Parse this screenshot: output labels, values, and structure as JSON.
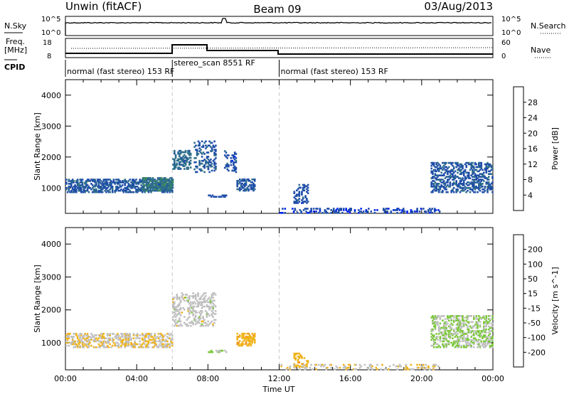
{
  "header": {
    "station": "Unwin (fitACF)",
    "beam": "Beam 09",
    "date": "03/Aug/2013"
  },
  "top_panel_labels": {
    "nsky": "N.Sky",
    "nsky_ticks": [
      "10^5",
      "10^0"
    ],
    "nsearch": "N.Search",
    "nsearch_ticks": [
      "10^5",
      "10^0"
    ],
    "freq": "Freq.",
    "freq_unit": "[MHz]",
    "freq_ticks": [
      "18",
      "8"
    ],
    "nave": "Nave",
    "nave_ticks": [
      "60",
      "0"
    ],
    "cpid": "CPID"
  },
  "cpid_segments": [
    {
      "label": "normal (fast stereo) 153 RF",
      "start": 0,
      "end": 6
    },
    {
      "label": "stereo_scan 8551 RF",
      "start": 6,
      "end": 12
    },
    {
      "label": "normal (fast stereo) 153 RF",
      "start": 12,
      "end": 24
    }
  ],
  "colors": {
    "power": [
      "#0022ee",
      "#1f4ea8",
      "#2f6f8a",
      "#3c8f5a",
      "#7cc83c",
      "#f0b41c",
      "#f08a1a",
      "#f05a12",
      "#e01010"
    ],
    "velocity": [
      "#e01010",
      "#f05a12",
      "#f08a1a",
      "#f0b41c",
      "#c0c0c0",
      "#7cc83c",
      "#3c8f5a",
      "#1f4ea8",
      "#2233cc"
    ],
    "grey": "#bbbbbb"
  },
  "chart_data": [
    {
      "type": "heatmap",
      "xlabel": "Time UT",
      "ylabel": "Slant Range [km]",
      "colorbar_label": "Power [dB]",
      "colorbar_ticks": [
        "28",
        "24",
        "20",
        "16",
        "12",
        "8",
        "4"
      ],
      "colorbar_range": [
        0,
        30
      ],
      "x_ticks": [
        "00:00",
        "04:00",
        "08:00",
        "12:00",
        "16:00",
        "20:00",
        "00:00"
      ],
      "y_ticks": [
        "1000",
        "2000",
        "3000",
        "4000"
      ],
      "xlim": [
        0,
        24
      ],
      "ylim": [
        180,
        4500
      ],
      "scatter_regions": [
        {
          "x": [
            0,
            6
          ],
          "y": [
            850,
            1300
          ],
          "value": 6,
          "density": 0.55
        },
        {
          "x": [
            4.3,
            6
          ],
          "y": [
            900,
            1350
          ],
          "value": 9,
          "density": 0.6
        },
        {
          "x": [
            6,
            7
          ],
          "y": [
            1600,
            2200
          ],
          "value": 8,
          "density": 0.5
        },
        {
          "x": [
            7.2,
            8.4
          ],
          "y": [
            1500,
            2500
          ],
          "value": 6,
          "density": 0.3
        },
        {
          "x": [
            8.9,
            9.6
          ],
          "y": [
            1500,
            2200
          ],
          "value": 5,
          "density": 0.3
        },
        {
          "x": [
            9.6,
            10.6
          ],
          "y": [
            900,
            1300
          ],
          "value": 6,
          "density": 0.55
        },
        {
          "x": [
            8,
            9
          ],
          "y": [
            700,
            780
          ],
          "value": 5,
          "density": 0.5
        },
        {
          "x": [
            12.8,
            13.6
          ],
          "y": [
            500,
            1100
          ],
          "value": 5,
          "density": 0.35
        },
        {
          "x": [
            12,
            21
          ],
          "y": [
            180,
            320
          ],
          "value": 4,
          "density": 0.25
        },
        {
          "x": [
            20.5,
            24
          ],
          "y": [
            850,
            1800
          ],
          "value": 6,
          "density": 0.45
        }
      ]
    },
    {
      "type": "heatmap",
      "xlabel": "Time UT",
      "ylabel": "Slant Range [km]",
      "colorbar_label": "Velocity [m s^-1]",
      "colorbar_ticks": [
        "200",
        "100",
        "50",
        "15",
        "-15",
        "-50",
        "-100",
        "-200"
      ],
      "colorbar_range": [
        -250,
        250
      ],
      "x_ticks": [
        "00:00",
        "04:00",
        "08:00",
        "12:00",
        "16:00",
        "20:00",
        "00:00"
      ],
      "y_ticks": [
        "1000",
        "2000",
        "3000",
        "4000"
      ],
      "xlim": [
        0,
        24
      ],
      "ylim": [
        180,
        4500
      ],
      "scatter_regions": [
        {
          "x": [
            0,
            6
          ],
          "y": [
            850,
            1300
          ],
          "value": -20,
          "density": 0.45
        },
        {
          "x": [
            6,
            8.4
          ],
          "y": [
            1500,
            2500
          ],
          "value": 0,
          "density": 0.35
        },
        {
          "x": [
            9.6,
            10.6
          ],
          "y": [
            900,
            1300
          ],
          "value": -60,
          "density": 0.55
        },
        {
          "x": [
            8,
            9
          ],
          "y": [
            700,
            780
          ],
          "value": 40,
          "density": 0.5
        },
        {
          "x": [
            12.8,
            13.6
          ],
          "y": [
            250,
            700
          ],
          "value": -60,
          "density": 0.3
        },
        {
          "x": [
            12,
            21
          ],
          "y": [
            180,
            320
          ],
          "value": -20,
          "density": 0.2
        },
        {
          "x": [
            20.5,
            24
          ],
          "y": [
            850,
            1800
          ],
          "value": 30,
          "density": 0.45
        }
      ]
    }
  ]
}
